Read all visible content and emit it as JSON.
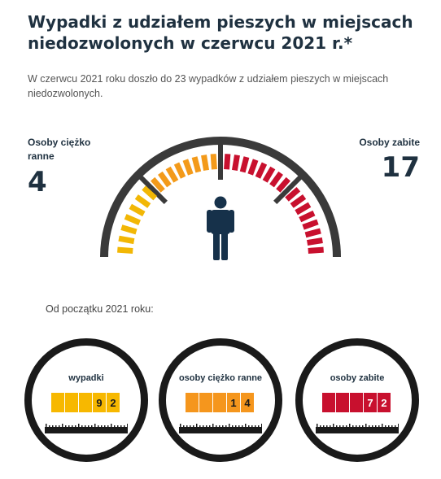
{
  "header": {
    "title": "Wypadki z udziałem pieszych w miejscach niedozwolonych w czerwcu 2021 r.*",
    "subtitle": "W czerwcu 2021 roku doszło do 23 wypadków z udziałem pieszych w miejscach niedozwolonych."
  },
  "gauge": {
    "left_label": "Osoby ciężko ranne",
    "left_value": "4",
    "right_label": "Osoby zabite",
    "right_value": "17",
    "colors": {
      "yellow": "#f2b705",
      "orange": "#f39a1a",
      "red": "#c8102e",
      "frame": "#3a3a3a",
      "figure": "#16314a"
    }
  },
  "since_label": "Od początku 2021 roku:",
  "counters": [
    {
      "label": "wypadki",
      "digits": [
        "",
        "",
        "",
        "9",
        "2"
      ],
      "color": "#f7b800",
      "text_color": "#1a1a1a"
    },
    {
      "label": "osoby ciężko ranne",
      "digits": [
        "",
        "",
        "",
        "1",
        "4"
      ],
      "color": "#f5961d",
      "text_color": "#1a1a1a"
    },
    {
      "label": "osoby zabite",
      "digits": [
        "",
        "",
        "",
        "7",
        "2"
      ],
      "color": "#c8102e",
      "text_color": "#ffffff"
    }
  ],
  "icons": {
    "figure": "person-icon",
    "ruler": "ruler-icon"
  }
}
